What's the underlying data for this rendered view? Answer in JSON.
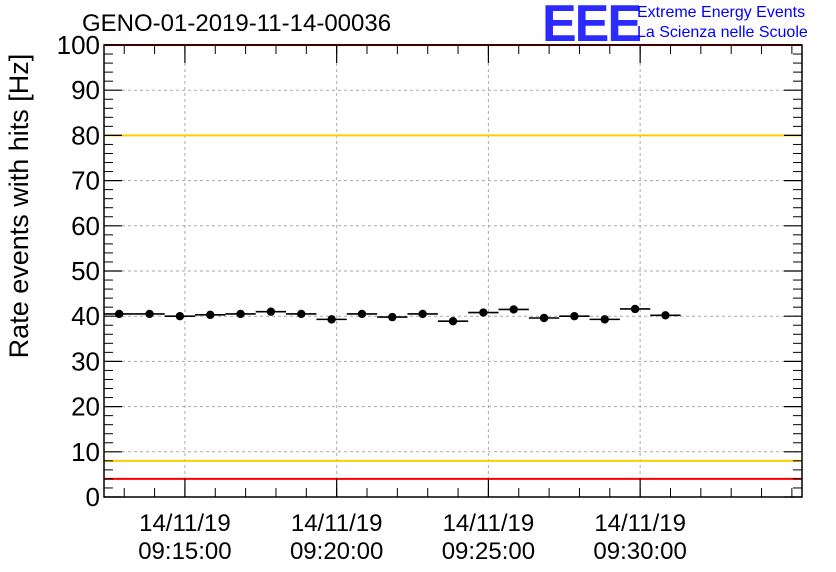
{
  "title": "GENO-01-2019-11-14-00036",
  "logo": {
    "mark": "EEE",
    "line1": "Extreme Energy Events",
    "line2": "La Scienza nelle Scuole"
  },
  "chart_data": {
    "type": "scatter",
    "title": "GENO-01-2019-11-14-00036",
    "ylabel": "Rate events with hits [Hz]",
    "xlabel": "",
    "ylim": [
      0,
      100
    ],
    "yticks": [
      0,
      10,
      20,
      30,
      40,
      50,
      60,
      70,
      80,
      90,
      100
    ],
    "xlim": [
      "09:12:20",
      "09:35:20"
    ],
    "xticks": [
      {
        "date": "14/11/19",
        "time": "09:15:00"
      },
      {
        "date": "14/11/19",
        "time": "09:20:00"
      },
      {
        "date": "14/11/19",
        "time": "09:25:00"
      },
      {
        "date": "14/11/19",
        "time": "09:30:00"
      }
    ],
    "grid": true,
    "bin_width_seconds": 60,
    "points": [
      {
        "x": "09:12:50",
        "y": 40.5
      },
      {
        "x": "09:13:50",
        "y": 40.5
      },
      {
        "x": "09:14:50",
        "y": 40.0
      },
      {
        "x": "09:15:50",
        "y": 40.3
      },
      {
        "x": "09:16:50",
        "y": 40.5
      },
      {
        "x": "09:17:50",
        "y": 41.0
      },
      {
        "x": "09:18:50",
        "y": 40.5
      },
      {
        "x": "09:19:50",
        "y": 39.3
      },
      {
        "x": "09:20:50",
        "y": 40.5
      },
      {
        "x": "09:21:50",
        "y": 39.8
      },
      {
        "x": "09:22:50",
        "y": 40.5
      },
      {
        "x": "09:23:50",
        "y": 38.9
      },
      {
        "x": "09:24:50",
        "y": 40.8
      },
      {
        "x": "09:25:50",
        "y": 41.5
      },
      {
        "x": "09:26:50",
        "y": 39.6
      },
      {
        "x": "09:27:50",
        "y": 40.0
      },
      {
        "x": "09:28:50",
        "y": 39.3
      },
      {
        "x": "09:29:50",
        "y": 41.6
      },
      {
        "x": "09:30:50",
        "y": 40.2
      }
    ],
    "reference_lines": [
      {
        "y": 100,
        "color": "#ff0000"
      },
      {
        "y": 80,
        "color": "#ffcc00"
      },
      {
        "y": 8,
        "color": "#ffcc00"
      },
      {
        "y": 4,
        "color": "#ff0000"
      }
    ]
  }
}
